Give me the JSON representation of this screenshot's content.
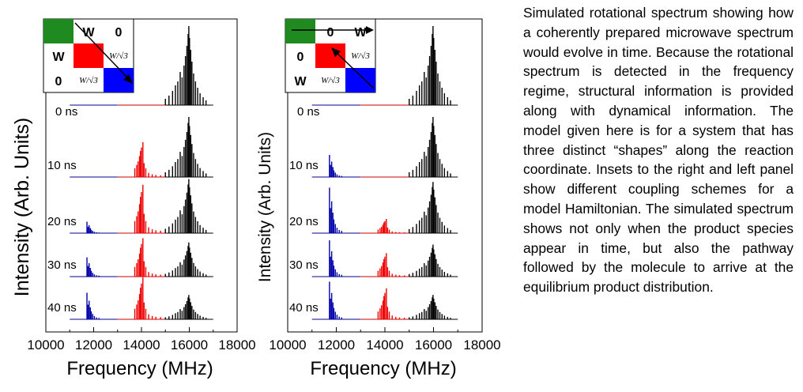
{
  "chart_data": [
    {
      "type": "line",
      "panel": "left",
      "xlabel": "Frequency (MHz)",
      "ylabel": "Intensity (Arb. Units)",
      "xlim": [
        10000,
        18000
      ],
      "xticks": [
        10000,
        12000,
        14000,
        16000,
        18000
      ],
      "trace_range": [
        11000,
        17000
      ],
      "series": [
        {
          "label": "0 ns",
          "blue": 0.0,
          "red": 0.0,
          "black": 1.0
        },
        {
          "label": "10 ns",
          "blue": 0.0,
          "red": 0.55,
          "black": 0.95
        },
        {
          "label": "20 ns",
          "blue": 0.2,
          "red": 0.85,
          "black": 0.95
        },
        {
          "label": "30 ns",
          "blue": 0.45,
          "red": 0.9,
          "black": 0.8
        },
        {
          "label": "40 ns",
          "blue": 0.6,
          "red": 0.95,
          "black": 0.55
        }
      ],
      "inset": {
        "colors": [
          "#1f8a1f",
          "#ff0000",
          "#0000ff"
        ],
        "row1": [
          "W",
          "0"
        ],
        "row2": [
          "W"
        ],
        "row3": [
          "0"
        ],
        "frac": "W/√3"
      }
    },
    {
      "type": "line",
      "panel": "right",
      "xlabel": "Frequency (MHz)",
      "ylabel": "Intensity (Arb. Units)",
      "xlim": [
        10000,
        18000
      ],
      "xticks": [
        10000,
        12000,
        14000,
        16000,
        18000
      ],
      "trace_range": [
        11000,
        17000
      ],
      "series": [
        {
          "label": "0 ns",
          "blue": 0.0,
          "red": 0.0,
          "black": 1.0
        },
        {
          "label": "10 ns",
          "blue": 0.35,
          "red": 0.0,
          "black": 0.95
        },
        {
          "label": "20 ns",
          "blue": 0.8,
          "red": 0.25,
          "black": 0.9
        },
        {
          "label": "30 ns",
          "blue": 0.85,
          "red": 0.55,
          "black": 0.75
        },
        {
          "label": "40 ns",
          "blue": 0.85,
          "red": 0.7,
          "black": 0.55
        }
      ],
      "inset": {
        "colors": [
          "#1f8a1f",
          "#ff0000",
          "#0000ff"
        ],
        "row1": [
          "0",
          "W"
        ],
        "row2": [
          "0"
        ],
        "row3": [
          "W"
        ],
        "frac": "W/√3"
      }
    }
  ],
  "caption": "Simulated rotational spectrum showing how a coherently prepared microwave spectrum would evolve in time. Because the rotational spectrum is detected in the frequency regime, structural information is provided along with dynamical information. The model given here is for a system that has three distinct “shapes” along the reaction coordinate. Insets to the right and left panel show different coupling schemes for a model Hamiltonian. The simulated spectrum shows not only when the product species appear in time, but also the pathway followed by the molecule to arrive at the equilibrium product distribution."
}
